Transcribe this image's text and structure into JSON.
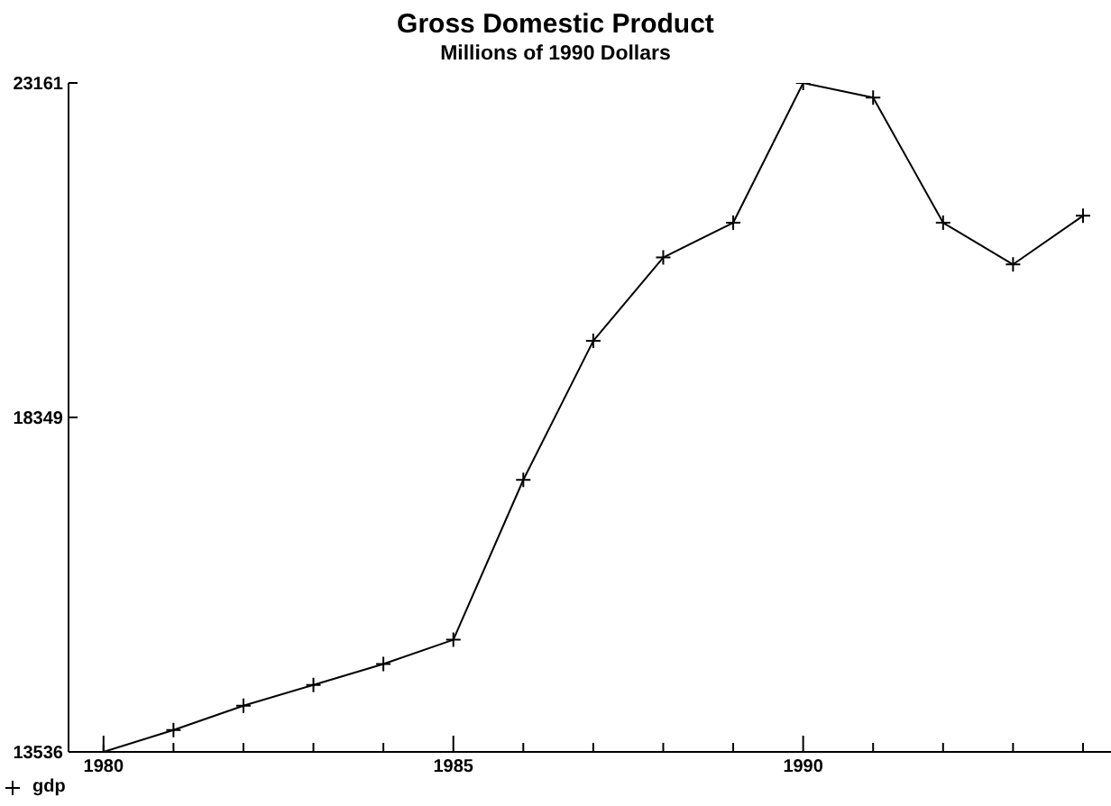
{
  "chart_data": {
    "type": "line",
    "title": "Gross Domestic Product",
    "subtitle": "Millions of 1990 Dollars",
    "x": [
      1980,
      1981,
      1982,
      1983,
      1984,
      1985,
      1986,
      1987,
      1988,
      1989,
      1990,
      1991,
      1992,
      1993,
      1994
    ],
    "series": [
      {
        "name": "gdp",
        "color": "#000000",
        "values": [
          13536,
          13850,
          14200,
          14500,
          14800,
          15150,
          17450,
          19450,
          20650,
          21150,
          23161,
          22950,
          21150,
          20550,
          21250
        ]
      }
    ],
    "xlim": [
      1979.5,
      1994.4
    ],
    "xticks": [
      1980,
      {
        "value": 1981,
        "label": null
      },
      {
        "value": 1982,
        "label": null
      },
      {
        "value": 1983,
        "label": null
      },
      {
        "value": 1984,
        "label": null
      },
      1985,
      {
        "value": 1986,
        "label": null
      },
      {
        "value": 1987,
        "label": null
      },
      {
        "value": 1988,
        "label": null
      },
      {
        "value": 1989,
        "label": null
      },
      1990,
      {
        "value": 1991,
        "label": null
      },
      {
        "value": 1992,
        "label": null
      },
      {
        "value": 1993,
        "label": null
      },
      {
        "value": 1994,
        "label": null
      }
    ],
    "ylim": [
      13536,
      23161
    ],
    "yticks": [
      13536,
      18349,
      23161
    ],
    "legend": "bottom left",
    "marker": "cross",
    "line_style": "solid"
  }
}
